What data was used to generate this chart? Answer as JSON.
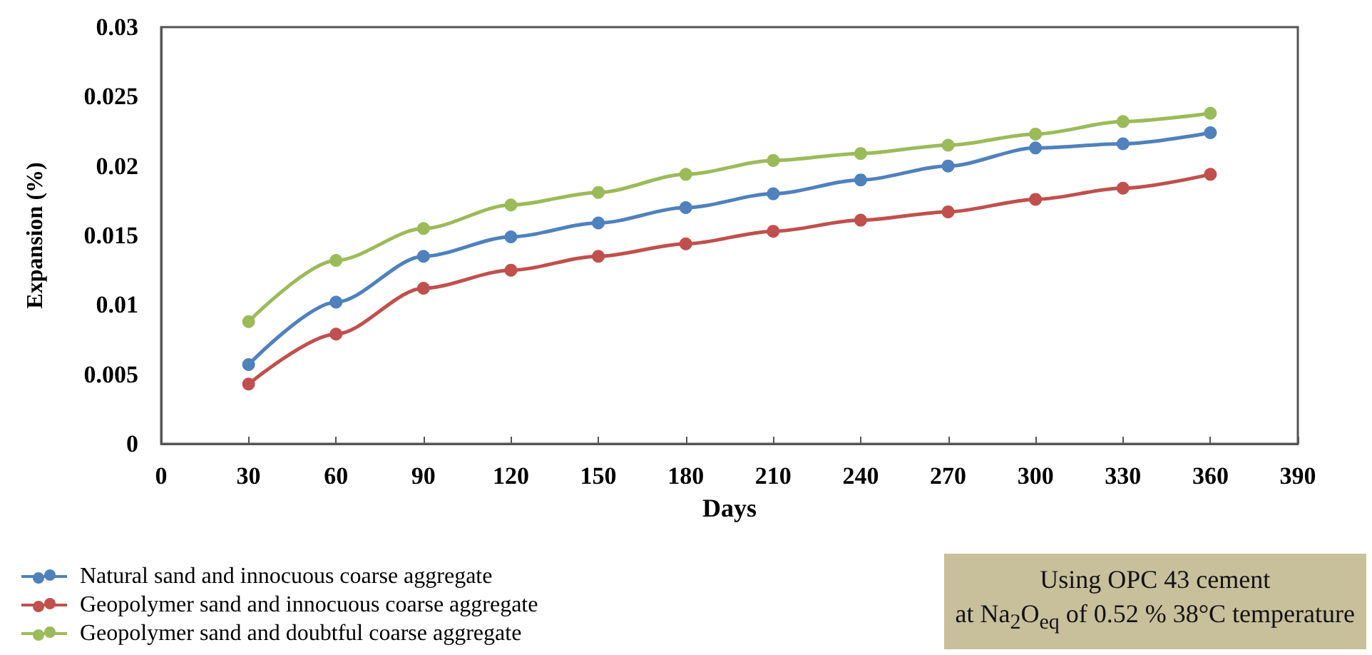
{
  "chart_data": {
    "type": "line",
    "xlabel": "Days",
    "ylabel": "Expansion (%)",
    "x": [
      30,
      60,
      90,
      120,
      150,
      180,
      210,
      240,
      270,
      300,
      330,
      360
    ],
    "series": [
      {
        "name": "Natural sand and innocuous coarse aggregate",
        "color": "#4f81bd",
        "values": [
          0.0057,
          0.0102,
          0.0135,
          0.0149,
          0.0159,
          0.017,
          0.018,
          0.019,
          0.02,
          0.0213,
          0.0216,
          0.0224
        ]
      },
      {
        "name": "Geopolymer sand and innocuous coarse aggregate",
        "color": "#c0504d",
        "values": [
          0.0043,
          0.0079,
          0.0112,
          0.0125,
          0.0135,
          0.0144,
          0.0153,
          0.0161,
          0.0167,
          0.0176,
          0.0184,
          0.0194
        ]
      },
      {
        "name": "Geopolymer sand and doubtful coarse aggregate",
        "color": "#9bbb59",
        "values": [
          0.0088,
          0.0132,
          0.0155,
          0.0172,
          0.0181,
          0.0194,
          0.0204,
          0.0209,
          0.0215,
          0.0223,
          0.0232,
          0.0238
        ]
      }
    ],
    "xlim": [
      0,
      390
    ],
    "xticks": [
      0,
      30,
      60,
      90,
      120,
      150,
      180,
      210,
      240,
      270,
      300,
      330,
      360,
      390
    ],
    "ylim": [
      0,
      0.03
    ],
    "yticks": [
      0,
      0.005,
      0.01,
      0.015,
      0.02,
      0.025,
      0.03
    ],
    "grid": false,
    "legend": "bottom left",
    "marker": "circle",
    "line_style": "solid",
    "annotations": [
      "Using OPC 43 cement\nat Na$_{2}$O$_{eq}$ of 0.52 % 38°C temperature"
    ]
  }
}
